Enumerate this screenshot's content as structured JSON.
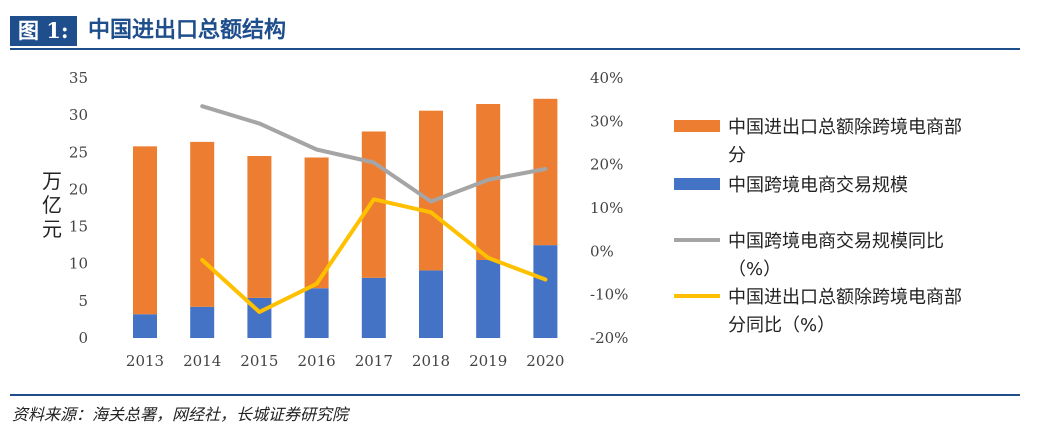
{
  "header": {
    "figure_label": "图 1:",
    "title": "中国进出口总额结构"
  },
  "source": "资料来源：海关总署，网经社，长城证券研究院",
  "chart_data": {
    "type": "bar+line",
    "title": "中国进出口总额结构",
    "categories": [
      "2013",
      "2014",
      "2015",
      "2016",
      "2017",
      "2018",
      "2019",
      "2020"
    ],
    "ylabel": "万亿元",
    "left_axis": {
      "min": 0,
      "max": 35,
      "ticks": [
        "0",
        "5",
        "10",
        "15",
        "20",
        "25",
        "30",
        "35"
      ]
    },
    "right_axis": {
      "min": -0.2,
      "max": 0.4,
      "ticks": [
        "-20%",
        "-10%",
        "0%",
        "10%",
        "20%",
        "30%",
        "40%"
      ]
    },
    "stacked_bars": [
      {
        "name": "中国跨境电商交易规模",
        "color": "#4472c4",
        "values": [
          3.2,
          4.2,
          5.4,
          6.7,
          8.1,
          9.1,
          10.5,
          12.5
        ]
      },
      {
        "name": "中国进出口总额除跨境电商部分",
        "color": "#ed7d31",
        "values": [
          22.6,
          22.2,
          19.1,
          17.6,
          19.7,
          21.5,
          21.0,
          19.7
        ]
      }
    ],
    "lines": [
      {
        "name": "中国跨境电商交易规模同比（%）",
        "color": "#a5a5a5",
        "axis": "right",
        "values": [
          null,
          0.335,
          0.295,
          0.235,
          0.205,
          0.115,
          0.165,
          0.19
        ]
      },
      {
        "name": "中国进出口总额除跨境电商部分同比（%）",
        "color": "#ffc000",
        "axis": "right",
        "values": [
          null,
          -0.02,
          -0.14,
          -0.075,
          0.12,
          0.09,
          -0.015,
          -0.065
        ]
      }
    ],
    "legend": [
      {
        "label": "中国进出口总额除跨境电商部\n分",
        "kind": "bar",
        "color": "#ed7d31"
      },
      {
        "label": "中国跨境电商交易规模",
        "kind": "bar",
        "color": "#4472c4"
      },
      {
        "label": "中国跨境电商交易规模同比\n（%）",
        "kind": "line",
        "color": "#a5a5a5"
      },
      {
        "label": "中国进出口总额除跨境电商部\n分同比（%）",
        "kind": "line",
        "color": "#ffc000"
      }
    ],
    "legend_position": "right"
  }
}
